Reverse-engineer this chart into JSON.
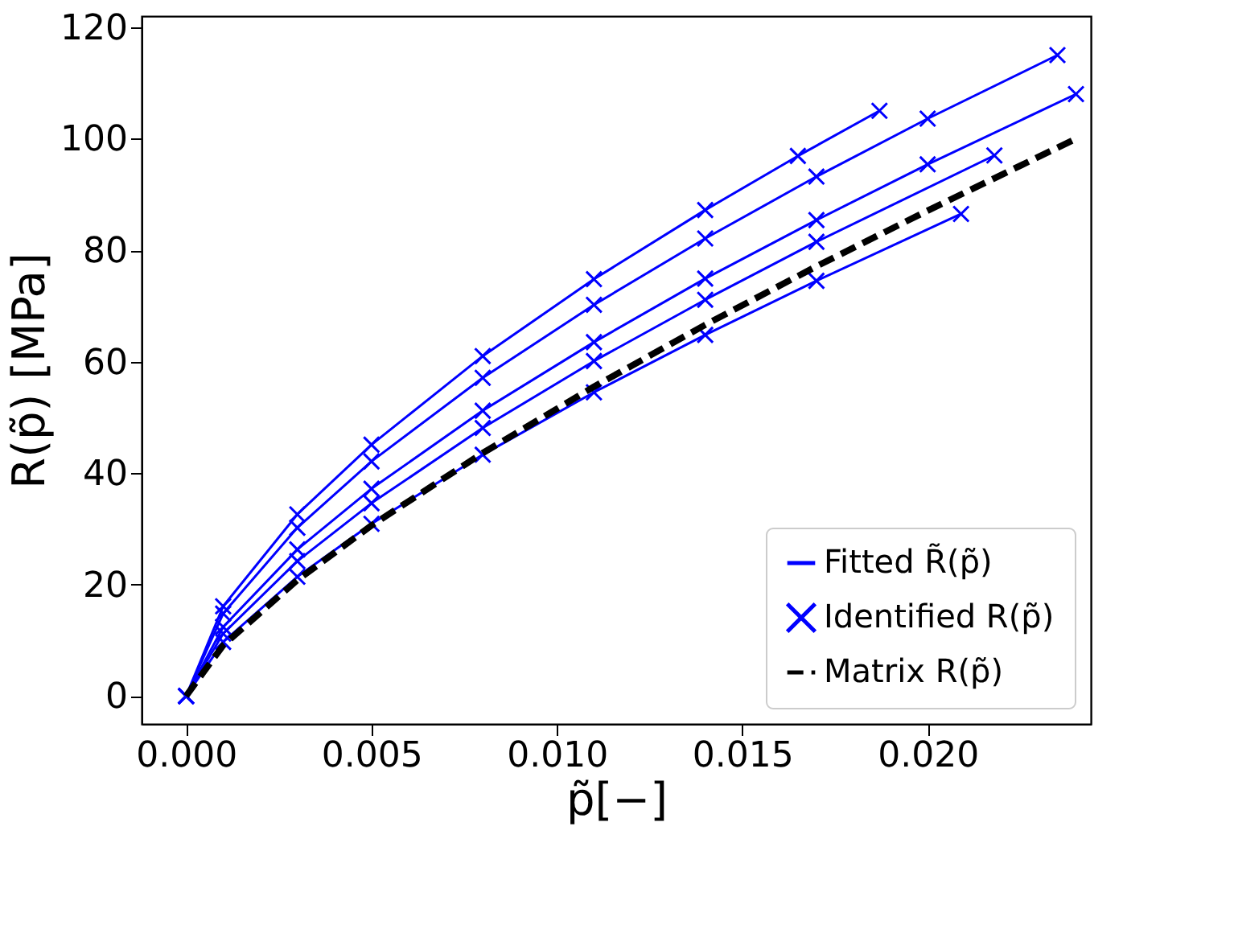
{
  "chart_data": {
    "type": "line",
    "xlabel": "p̃[−]",
    "ylabel": "R(p̃) [MPa]",
    "xlim": [
      -0.0012,
      0.0244
    ],
    "ylim": [
      -5,
      122
    ],
    "xticks": [
      {
        "value": 0,
        "label": "0.000"
      },
      {
        "value": 0.005,
        "label": "0.005"
      },
      {
        "value": 0.01,
        "label": "0.010"
      },
      {
        "value": 0.015,
        "label": "0.015"
      },
      {
        "value": 0.02,
        "label": "0.020"
      }
    ],
    "yticks": [
      0,
      20,
      40,
      60,
      80,
      100,
      120
    ],
    "grid": false,
    "legend": "bottom right",
    "series": [
      {
        "name": "Fitted R̃(p̃)",
        "color": "#0000ff",
        "line_style": "solid",
        "x": [
          0,
          0.001,
          0.003,
          0.005,
          0.008,
          0.011,
          0.014,
          0.017,
          0.02,
          0.0235
        ],
        "values": [
          0,
          14.8,
          30.2,
          42.1,
          57.1,
          70.2,
          82.1,
          93.2,
          103.6,
          115
        ]
      },
      {
        "color": "#0000ff",
        "line_style": "solid",
        "x": [
          0,
          0.001,
          0.003,
          0.005,
          0.008,
          0.011,
          0.014,
          0.0165,
          0.0187
        ],
        "values": [
          0,
          16.1,
          32.6,
          45.1,
          61.0,
          74.8,
          87.2,
          96.9,
          105
        ]
      },
      {
        "color": "#0000ff",
        "line_style": "solid",
        "x": [
          0,
          0.001,
          0.003,
          0.005,
          0.008,
          0.011,
          0.014,
          0.017,
          0.02,
          0.024
        ],
        "values": [
          0,
          12.4,
          26.3,
          37.2,
          51.2,
          63.5,
          74.9,
          85.4,
          95.4,
          108
        ]
      },
      {
        "color": "#0000ff",
        "line_style": "solid",
        "x": [
          0,
          0.001,
          0.003,
          0.005,
          0.008,
          0.011,
          0.014,
          0.017,
          0.0218
        ],
        "values": [
          0,
          11.2,
          24.2,
          34.6,
          48.1,
          60.1,
          71.1,
          81.5,
          97
        ]
      },
      {
        "color": "#0000ff",
        "line_style": "solid",
        "x": [
          0,
          0.001,
          0.003,
          0.005,
          0.008,
          0.011,
          0.014,
          0.017,
          0.0209
        ],
        "values": [
          0,
          9.7,
          21.4,
          30.9,
          43.3,
          54.5,
          64.8,
          74.5,
          86.5
        ]
      },
      {
        "type": "scatter",
        "name": "Identified R(p̃)",
        "color": "#0000ff",
        "marker": "cross",
        "x": [
          0,
          0.001,
          0.003,
          0.005,
          0.008,
          0.011,
          0.014,
          0.017,
          0.02,
          0.0235
        ],
        "values": [
          0,
          14.8,
          30.2,
          42.1,
          57.1,
          70.2,
          82.1,
          93.2,
          103.6,
          115
        ]
      },
      {
        "type": "scatter",
        "color": "#0000ff",
        "marker": "cross",
        "x": [
          0,
          0.001,
          0.003,
          0.005,
          0.008,
          0.011,
          0.014,
          0.0165,
          0.0187
        ],
        "values": [
          0,
          16.1,
          32.6,
          45.1,
          61.0,
          74.8,
          87.2,
          96.9,
          105
        ]
      },
      {
        "type": "scatter",
        "color": "#0000ff",
        "marker": "cross",
        "x": [
          0,
          0.001,
          0.003,
          0.005,
          0.008,
          0.011,
          0.014,
          0.017,
          0.02,
          0.024
        ],
        "values": [
          0,
          12.4,
          26.3,
          37.2,
          51.2,
          63.5,
          74.9,
          85.4,
          95.4,
          108
        ]
      },
      {
        "type": "scatter",
        "color": "#0000ff",
        "marker": "cross",
        "x": [
          0,
          0.001,
          0.003,
          0.005,
          0.008,
          0.011,
          0.014,
          0.017,
          0.0218
        ],
        "values": [
          0,
          11.2,
          24.2,
          34.6,
          48.1,
          60.1,
          71.1,
          81.5,
          97
        ]
      },
      {
        "type": "scatter",
        "color": "#0000ff",
        "marker": "cross",
        "x": [
          0,
          0.001,
          0.003,
          0.005,
          0.008,
          0.011,
          0.014,
          0.017,
          0.0209
        ],
        "values": [
          0,
          9.7,
          21.4,
          30.9,
          43.3,
          54.5,
          64.8,
          74.5,
          86.5
        ]
      },
      {
        "name": "Matrix R(p̃)",
        "color": "#000000",
        "line_style": "dashed",
        "x": [
          0,
          0.001,
          0.003,
          0.005,
          0.008,
          0.011,
          0.014,
          0.017,
          0.02,
          0.024
        ],
        "values": [
          0,
          9.1,
          20.8,
          30.6,
          43.6,
          55.5,
          66.6,
          77.1,
          87.1,
          100
        ]
      }
    ]
  }
}
